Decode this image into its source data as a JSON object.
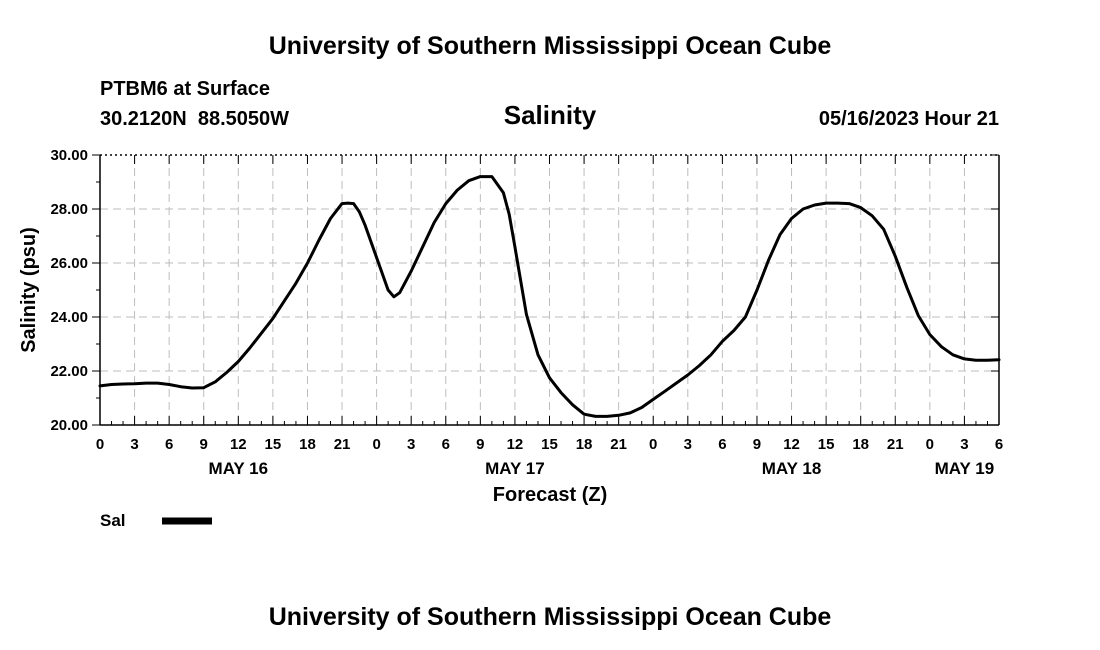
{
  "header": {
    "title": "University of Southern Mississippi Ocean Cube",
    "station": "PTBM6 at Surface",
    "coords": "30.2120N  88.5050W",
    "datetime": "05/16/2023 Hour 21",
    "footer_title": "University of Southern Mississippi Ocean Cube"
  },
  "chart_data": {
    "type": "line",
    "title": "Salinity",
    "xlabel": "Forecast (Z)",
    "ylabel": "Salinity (psu)",
    "ylim": [
      20,
      30
    ],
    "yticks": [
      "20.00",
      "22.00",
      "24.00",
      "26.00",
      "28.00",
      "30.00"
    ],
    "xlim_hours": [
      0,
      78
    ],
    "xtick_labels": [
      "0",
      "3",
      "6",
      "9",
      "12",
      "15",
      "18",
      "21",
      "0",
      "3",
      "6",
      "9",
      "12",
      "15",
      "18",
      "21",
      "0",
      "3",
      "6",
      "9",
      "12",
      "15",
      "18",
      "21",
      "0",
      "3",
      "6"
    ],
    "day_labels": [
      {
        "label": "MAY 16",
        "hour": 12
      },
      {
        "label": "MAY 17",
        "hour": 36
      },
      {
        "label": "MAY 18",
        "hour": 60
      },
      {
        "label": "MAY 19",
        "hour": 75
      }
    ],
    "grid": true,
    "legend": {
      "position": "bottom-left",
      "entries": [
        {
          "name": "Sal",
          "color": "#000000"
        }
      ]
    },
    "series": [
      {
        "name": "Sal",
        "color": "#000000",
        "x": [
          0,
          1,
          2,
          3,
          4,
          5,
          6,
          7,
          8,
          9,
          10,
          11,
          12,
          13,
          14,
          15,
          16,
          17,
          18,
          19,
          20,
          21,
          21.5,
          22,
          22.5,
          23,
          24,
          25,
          25.5,
          26,
          27,
          28,
          29,
          30,
          31,
          32,
          33,
          34,
          35,
          35.5,
          36,
          37,
          38,
          39,
          40,
          41,
          42,
          43,
          44,
          45,
          46,
          47,
          48,
          49,
          50,
          51,
          52,
          53,
          54,
          55,
          56,
          57,
          58,
          59,
          60,
          61,
          62,
          63,
          64,
          65,
          66,
          67,
          68,
          69,
          70,
          71,
          72,
          73,
          74,
          75,
          76,
          77,
          78
        ],
        "values": [
          21.45,
          21.5,
          21.52,
          21.53,
          21.55,
          21.55,
          21.5,
          21.42,
          21.37,
          21.38,
          21.6,
          21.95,
          22.35,
          22.85,
          23.4,
          23.95,
          24.6,
          25.25,
          26.0,
          26.85,
          27.65,
          28.2,
          28.22,
          28.2,
          27.9,
          27.4,
          26.2,
          25.0,
          24.75,
          24.9,
          25.7,
          26.6,
          27.5,
          28.2,
          28.7,
          29.05,
          29.2,
          29.2,
          28.6,
          27.8,
          26.6,
          24.1,
          22.6,
          21.75,
          21.2,
          20.75,
          20.4,
          20.32,
          20.32,
          20.36,
          20.45,
          20.65,
          20.95,
          21.25,
          21.55,
          21.85,
          22.2,
          22.6,
          23.1,
          23.5,
          24.0,
          25.0,
          26.1,
          27.05,
          27.65,
          28.0,
          28.15,
          28.22,
          28.22,
          28.2,
          28.05,
          27.75,
          27.25,
          26.25,
          25.1,
          24.05,
          23.35,
          22.9,
          22.6,
          22.45,
          22.4,
          22.4,
          22.42
        ]
      }
    ]
  }
}
